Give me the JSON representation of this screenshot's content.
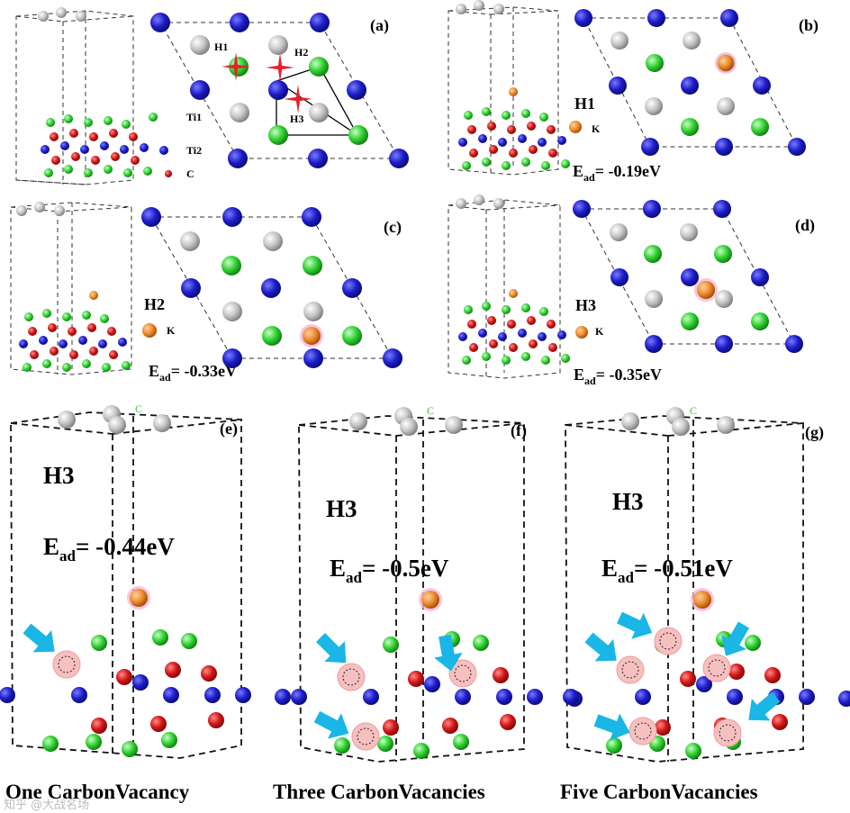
{
  "panels": {
    "a": {
      "tag": "(a)",
      "sites": [
        "H1",
        "H2",
        "H3"
      ],
      "legend": [
        "Ti1",
        "Ti2",
        "C"
      ]
    },
    "b": {
      "tag": "(b)",
      "site": "H1",
      "adatom": "K",
      "energy_value": "= -0.19eV"
    },
    "c": {
      "tag": "(c)",
      "site": "H2",
      "adatom": "K",
      "energy_value": "= -0.33eV"
    },
    "d": {
      "tag": "(d)",
      "site": "H3",
      "adatom": "K",
      "energy_value": "= -0.35eV"
    },
    "e": {
      "tag": "(e)",
      "site": "H3",
      "energy_value": "= -0.44eV",
      "caption": "One CarbonVacancy"
    },
    "f": {
      "tag": "(f)",
      "site": "H3",
      "energy_value": "= -0.5eV",
      "caption": "Three CarbonVacancies"
    },
    "g": {
      "tag": "(g)",
      "site": "H3",
      "energy_value": "= -0.51eV",
      "caption": "Five CarbonVacancies"
    }
  },
  "energy_symbol": "E",
  "energy_subscript": "ad",
  "axis_label": "C",
  "watermark": "知乎 @大战名场",
  "colors": {
    "ti1": "#b8b8b8",
    "ti2": "#1f1fbf",
    "carbon": "#d01818",
    "green": "#2ecc2e",
    "potassium": "#ef8a2c",
    "star": "#e8202a",
    "arrow": "#19b6e6",
    "vacancy": "#f7c0c0"
  }
}
